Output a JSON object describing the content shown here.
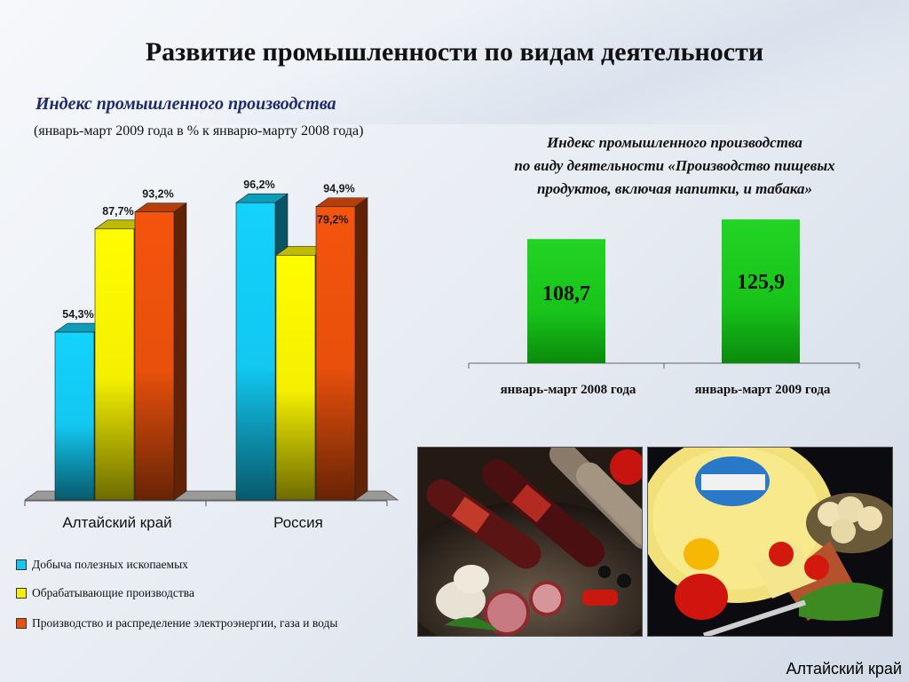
{
  "title": "Развитие промышленности по видам деятельности",
  "subtitle_main": "Индекс промышленного производства",
  "subtitle_note": "(январь-март 2009 года в % к январю-марту 2008 года)",
  "right_title": {
    "line1": "Индекс промышленного производства",
    "line2": "по виду деятельности «Производство пищевых",
    "line3": "продуктов, включая напитки, и табака»"
  },
  "footer": "Алтайский край",
  "chart_data": [
    {
      "type": "bar",
      "categories": [
        "Алтайский край",
        "Россия"
      ],
      "series": [
        {
          "name": "Добыча полезных ископаемых",
          "values": [
            54.3,
            96.2
          ],
          "labels": [
            "54,3%",
            "96,2%"
          ],
          "color": "#12c8f0"
        },
        {
          "name": "Обрабатывающие производства",
          "values": [
            87.7,
            79.2
          ],
          "labels": [
            "87,7%",
            "79,2%"
          ],
          "color": "#f4f000"
        },
        {
          "name": "Производство и распределение электроэнергии, газа и воды",
          "values": [
            93.2,
            94.9
          ],
          "labels": [
            "93,2%",
            "94,9%"
          ],
          "color": "#e8500c"
        }
      ],
      "ylim": [
        0,
        100
      ],
      "grid": false,
      "legend_position": "bottom"
    },
    {
      "type": "bar",
      "categories": [
        "январь-март 2008 года",
        "январь-март 2009 года"
      ],
      "values": [
        108.7,
        125.9
      ],
      "labels": [
        "108,7",
        "125,9"
      ],
      "color": "#18c21a",
      "grid": false
    }
  ]
}
